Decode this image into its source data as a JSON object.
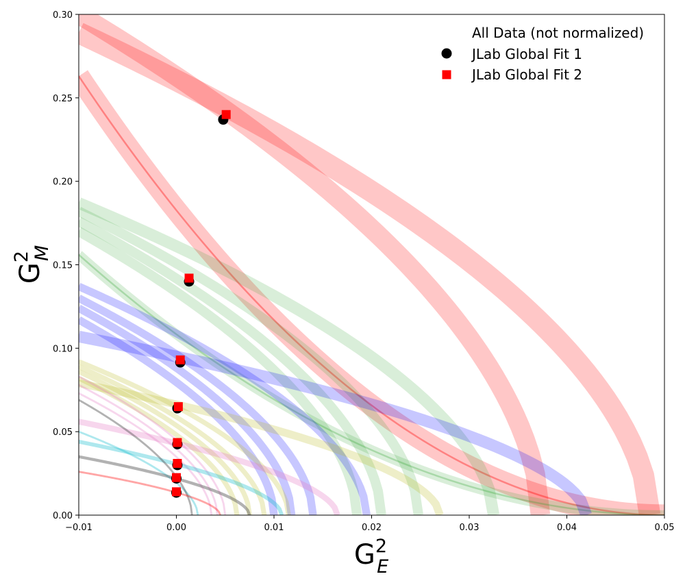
{
  "chart_data": {
    "type": "scatter",
    "xlabel": "G",
    "xlabel_sup": "2",
    "xlabel_sub": "E",
    "ylabel": "G",
    "ylabel_sup": "2",
    "ylabel_sub": "M",
    "xlim": [
      -0.01,
      0.05
    ],
    "ylim": [
      0.0,
      0.3
    ],
    "xticks": [
      -0.01,
      0.0,
      0.01,
      0.02,
      0.03,
      0.04,
      0.05
    ],
    "xtick_labels": [
      "−0.01",
      "0.00",
      "0.01",
      "0.02",
      "0.03",
      "0.04",
      "0.05"
    ],
    "yticks": [
      0.0,
      0.05,
      0.1,
      0.15,
      0.2,
      0.25,
      0.3
    ],
    "ytick_labels": [
      "0.00",
      "0.05",
      "0.10",
      "0.15",
      "0.20",
      "0.25",
      "0.30"
    ],
    "grid": false,
    "legend": {
      "placement": "top-right",
      "entries": [
        {
          "label": "All Data (not normalized)",
          "marker": "none"
        },
        {
          "label": "JLab Global Fit 1",
          "marker": "circle",
          "color": "#000000"
        },
        {
          "label": "JLab Global Fit 2",
          "marker": "square",
          "color": "#ff0000"
        }
      ]
    },
    "series": [
      {
        "name": "JLab Global Fit 1",
        "marker": "circle",
        "color": "#000000",
        "points": [
          [
            0.0048,
            0.237
          ],
          [
            0.0013,
            0.14
          ],
          [
            0.0004,
            0.0915
          ],
          [
            0.0001,
            0.064
          ],
          [
            0.0001,
            0.0425
          ],
          [
            0.0001,
            0.03
          ],
          [
            0.0,
            0.022
          ],
          [
            0.0,
            0.0135
          ]
        ]
      },
      {
        "name": "JLab Global Fit 2",
        "marker": "square",
        "color": "#ff0000",
        "points": [
          [
            0.0051,
            0.24
          ],
          [
            0.0013,
            0.142
          ],
          [
            0.0004,
            0.093
          ],
          [
            0.0002,
            0.065
          ],
          [
            0.0001,
            0.0435
          ],
          [
            0.0001,
            0.031
          ],
          [
            0.0,
            0.0225
          ],
          [
            0.0,
            0.014
          ]
        ]
      }
    ],
    "bands": [
      {
        "color": "#ff0000",
        "alpha": 0.22,
        "width": 0.0022,
        "center_line": true,
        "y0": 0.263,
        "x0": 0.05,
        "curv": 0.5
      },
      {
        "color": "#ff0000",
        "alpha": 0.22,
        "width": 0.0022,
        "center_line": false,
        "y0": 0.289,
        "x0": 0.0485,
        "curv": 1.8
      },
      {
        "color": "#ff0000",
        "alpha": 0.22,
        "width": 0.002,
        "center_line": false,
        "y0": 0.3,
        "x0": 0.0373,
        "curv": 1.8
      },
      {
        "color": "#2ca02c",
        "alpha": 0.18,
        "width": 0.001,
        "center_line": true,
        "y0": 0.156,
        "x0": 0.05,
        "curv": 0.5
      },
      {
        "color": "#2ca02c",
        "alpha": 0.18,
        "width": 0.0012,
        "center_line": false,
        "y0": 0.187,
        "x0": 0.0325,
        "curv": 1.8
      },
      {
        "color": "#2ca02c",
        "alpha": 0.18,
        "width": 0.001,
        "center_line": false,
        "y0": 0.182,
        "x0": 0.0248,
        "curv": 1.8
      },
      {
        "color": "#2ca02c",
        "alpha": 0.18,
        "width": 0.001,
        "center_line": false,
        "y0": 0.176,
        "x0": 0.021,
        "curv": 1.8
      },
      {
        "color": "#2ca02c",
        "alpha": 0.18,
        "width": 0.001,
        "center_line": false,
        "y0": 0.17,
        "x0": 0.0185,
        "curv": 1.8
      },
      {
        "color": "#0000ff",
        "alpha": 0.22,
        "width": 0.0012,
        "center_line": false,
        "y0": 0.107,
        "x0": 0.042,
        "curv": 1.8
      },
      {
        "color": "#0000ff",
        "alpha": 0.22,
        "width": 0.0008,
        "center_line": false,
        "y0": 0.137,
        "x0": 0.0195,
        "curv": 1.8
      },
      {
        "color": "#0000ff",
        "alpha": 0.22,
        "width": 0.0008,
        "center_line": false,
        "y0": 0.13,
        "x0": 0.014,
        "curv": 1.8
      },
      {
        "color": "#0000ff",
        "alpha": 0.22,
        "width": 0.0008,
        "center_line": false,
        "y0": 0.124,
        "x0": 0.0118,
        "curv": 1.8
      },
      {
        "color": "#0000ff",
        "alpha": 0.22,
        "width": 0.0008,
        "center_line": false,
        "y0": 0.117,
        "x0": 0.01,
        "curv": 1.8
      },
      {
        "color": "#bcbd22",
        "alpha": 0.25,
        "width": 0.0008,
        "center_line": false,
        "y0": 0.079,
        "x0": 0.027,
        "curv": 1.8
      },
      {
        "color": "#bcbd22",
        "alpha": 0.25,
        "width": 0.0005,
        "center_line": false,
        "y0": 0.092,
        "x0": 0.0115,
        "curv": 1.8
      },
      {
        "color": "#bcbd22",
        "alpha": 0.25,
        "width": 0.0005,
        "center_line": false,
        "y0": 0.089,
        "x0": 0.009,
        "curv": 1.8
      },
      {
        "color": "#bcbd22",
        "alpha": 0.25,
        "width": 0.0005,
        "center_line": false,
        "y0": 0.086,
        "x0": 0.0075,
        "curv": 1.8
      },
      {
        "color": "#bcbd22",
        "alpha": 0.25,
        "width": 0.0005,
        "center_line": false,
        "y0": 0.082,
        "x0": 0.0062,
        "curv": 1.8
      },
      {
        "color": "#e377c2",
        "alpha": 0.3,
        "width": 0.0006,
        "center_line": false,
        "y0": 0.056,
        "x0": 0.0165,
        "curv": 1.8
      },
      {
        "color": "#e377c2",
        "alpha": 0.3,
        "width": 0.0002,
        "center_line": false,
        "y0": 0.083,
        "x0": 0.005,
        "curv": 1.8
      },
      {
        "color": "#e377c2",
        "alpha": 0.3,
        "width": 0.0002,
        "center_line": false,
        "y0": 0.078,
        "x0": 0.0042,
        "curv": 1.8
      },
      {
        "color": "#e377c2",
        "alpha": 0.3,
        "width": 0.0002,
        "center_line": false,
        "y0": 0.073,
        "x0": 0.0036,
        "curv": 1.8
      },
      {
        "color": "#17becf",
        "alpha": 0.35,
        "width": 0.0004,
        "center_line": false,
        "y0": 0.044,
        "x0": 0.0108,
        "curv": 1.8
      },
      {
        "color": "#17becf",
        "alpha": 0.35,
        "width": 0.0002,
        "center_line": false,
        "y0": 0.05,
        "x0": 0.0022,
        "curv": 1.8
      },
      {
        "color": "#555555",
        "alpha": 0.45,
        "width": 0.0003,
        "center_line": false,
        "y0": 0.035,
        "x0": 0.0075,
        "curv": 1.8
      },
      {
        "color": "#555555",
        "alpha": 0.45,
        "width": 0.0002,
        "center_line": false,
        "y0": 0.069,
        "x0": 0.0016,
        "curv": 1.8
      },
      {
        "color": "#ff0000",
        "alpha": 0.35,
        "width": 0.0002,
        "center_line": false,
        "y0": 0.026,
        "x0": 0.0045,
        "curv": 1.8
      }
    ]
  }
}
